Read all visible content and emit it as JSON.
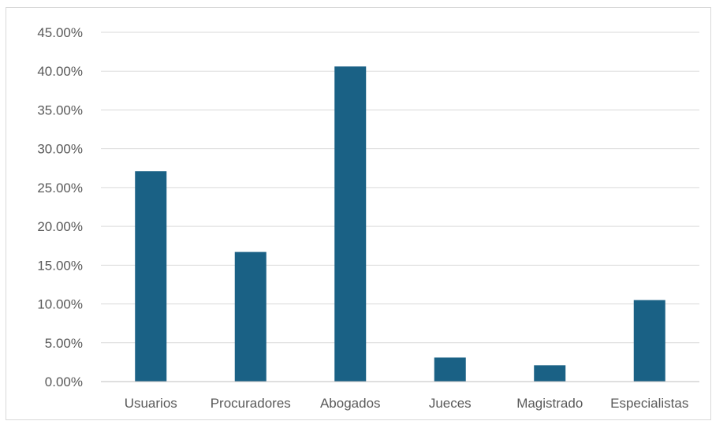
{
  "chart_data": {
    "type": "bar",
    "title": "",
    "xlabel": "",
    "ylabel": "",
    "categories": [
      "Usuarios",
      "Procuradores",
      "Abogados",
      "Jueces",
      "Magistrado",
      "Especialistas"
    ],
    "values": [
      27.1,
      16.7,
      40.6,
      3.1,
      2.1,
      10.5
    ],
    "value_format": "percent",
    "ylim": [
      0,
      45
    ],
    "yticks": [
      0,
      5,
      10,
      15,
      20,
      25,
      30,
      35,
      40,
      45
    ],
    "ytick_labels": [
      "0.00%",
      "5.00%",
      "10.00%",
      "15.00%",
      "20.00%",
      "25.00%",
      "30.00%",
      "35.00%",
      "40.00%",
      "45.00%"
    ],
    "grid": true,
    "legend": "none",
    "colors": {
      "bar": "#1a6185",
      "grid": "#d9d9d9",
      "axis": "#bfbfbf",
      "text": "#595959"
    }
  }
}
